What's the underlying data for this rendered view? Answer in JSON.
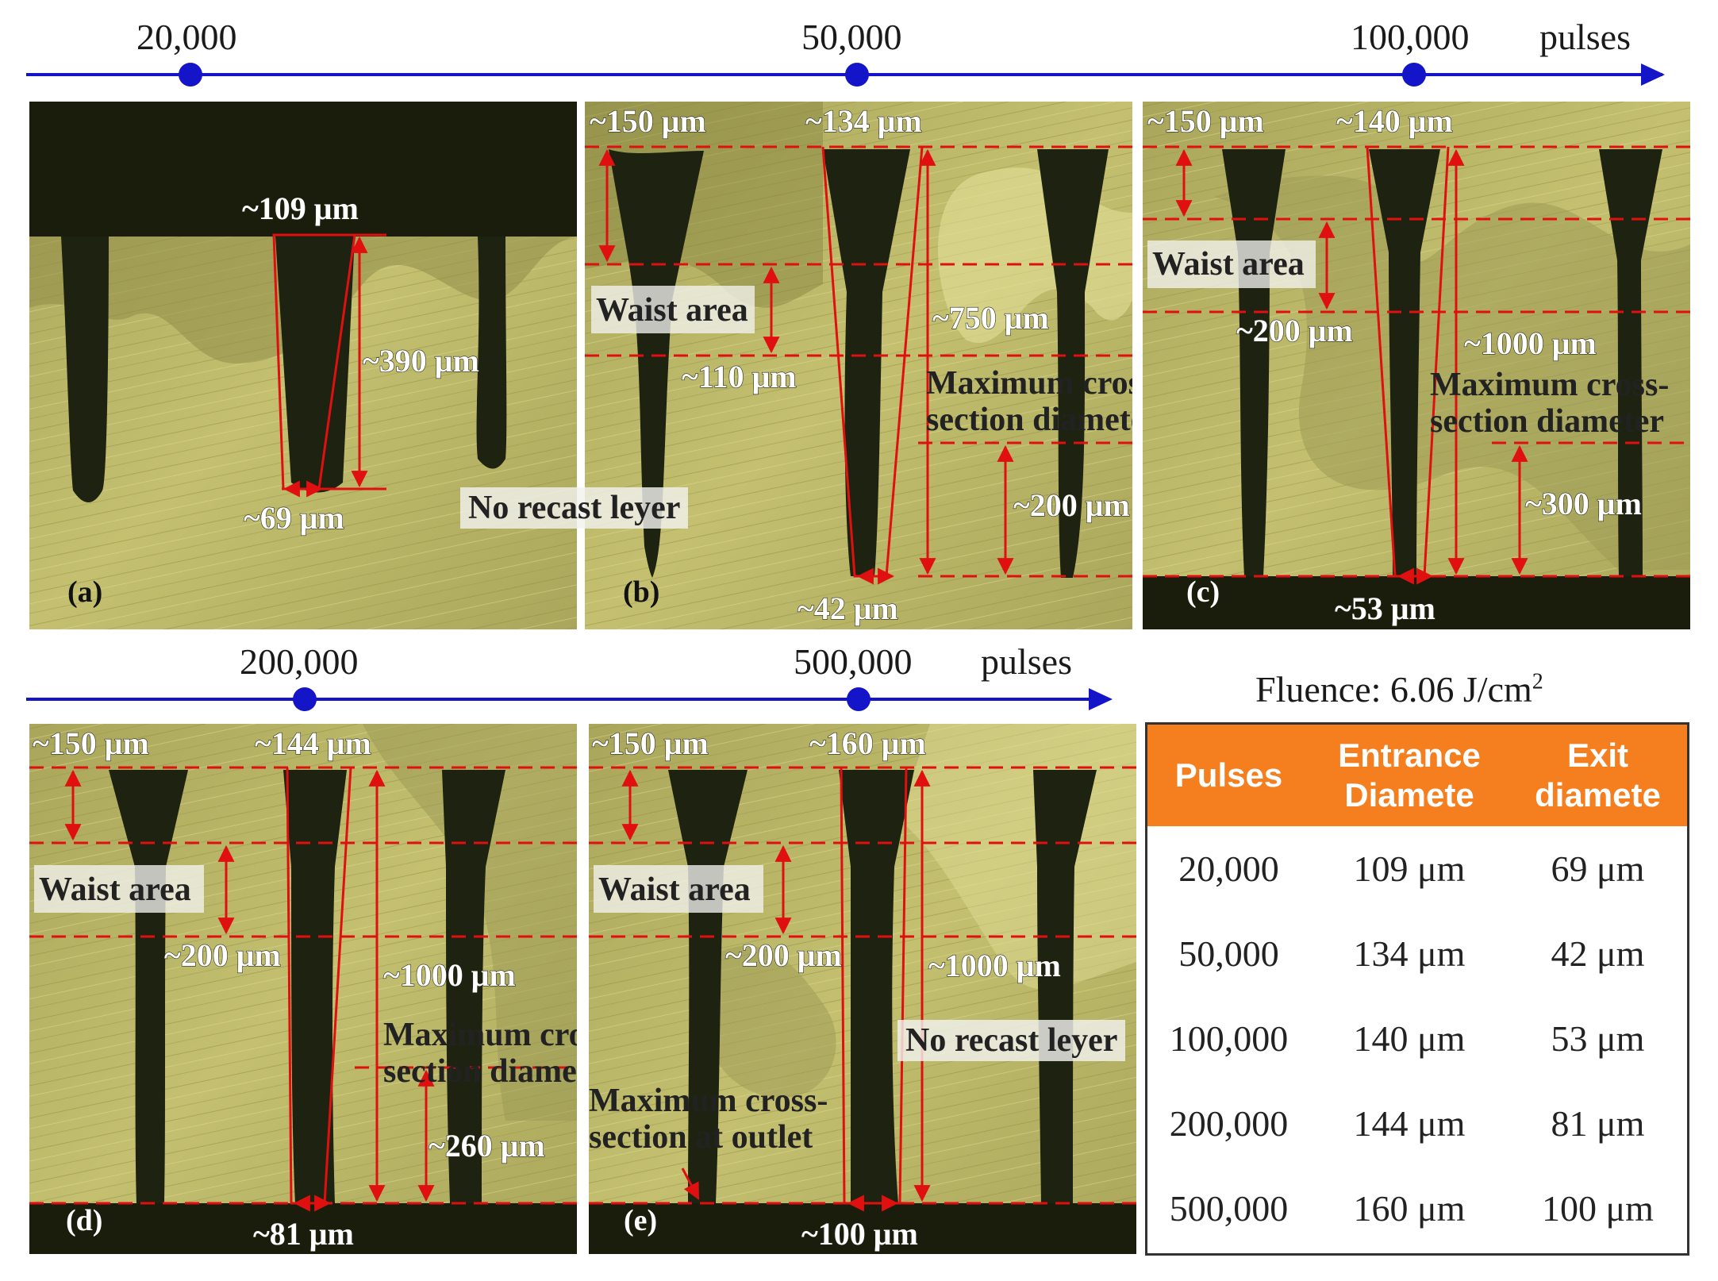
{
  "timeline_top": {
    "ticks": [
      "20,000",
      "50,000",
      "100,000"
    ],
    "unit": "pulses"
  },
  "timeline_bottom": {
    "ticks": [
      "200,000",
      "500,000"
    ],
    "unit": "pulses"
  },
  "panels": {
    "a": {
      "label": "(a)",
      "entrance": "~109 μm",
      "depth": "~390 μm",
      "exit": "~69 μm"
    },
    "b": {
      "label": "(b)",
      "surface": "~150 μm",
      "entrance": "~134 μm",
      "waist": "Waist area",
      "waist_len": "~110 μm",
      "depth": "~750 μm",
      "max_cs": "Maximum cross-\nsection diameter",
      "max_len": "~200 μm",
      "exit": "~42 μm"
    },
    "c": {
      "label": "(c)",
      "surface": "~150 μm",
      "entrance": "~140 μm",
      "waist": "Waist area",
      "waist_len": "~200 μm",
      "depth": "~1000 μm",
      "max_cs": "Maximum cross-\nsection diameter",
      "max_len": "~300 μm",
      "exit": "~53 μm"
    },
    "d": {
      "label": "(d)",
      "surface": "~150 μm",
      "entrance": "~144 μm",
      "waist": "Waist area",
      "waist_len": "~200 μm",
      "depth": "~1000 μm",
      "max_cs": "Maximum cross-\nsection diameter",
      "max_len": "~260 μm",
      "exit": "~81 μm"
    },
    "e": {
      "label": "(e)",
      "surface": "~150 μm",
      "entrance": "~160 μm",
      "waist": "Waist area",
      "waist_len": "~200 μm",
      "depth": "~1000 μm",
      "max_cs": "Maximum cross-\nsection at outlet",
      "exit": "~100 μm"
    }
  },
  "no_recast_1": "No recast leyer",
  "no_recast_2": "No recast leyer",
  "fluence": {
    "label": "Fluence: 6.06 J/cm",
    "sup": "2"
  },
  "table": {
    "headers": [
      "Pulses",
      "Entrance\nDiamete",
      "Exit\ndiamete"
    ],
    "rows": [
      [
        "20,000",
        "109 μm",
        "69 μm"
      ],
      [
        "50,000",
        "134 μm",
        "42 μm"
      ],
      [
        "100,000",
        "140 μm",
        "53 μm"
      ],
      [
        "200,000",
        "144 μm",
        "81 μm"
      ],
      [
        "500,000",
        "160 μm",
        "100 μm"
      ]
    ]
  },
  "colors": {
    "timeline": "#1414c8",
    "annotation": "#e01010",
    "header_bg": "#f57f1f",
    "metal": "#b8b463",
    "hole": "#1e2210"
  }
}
